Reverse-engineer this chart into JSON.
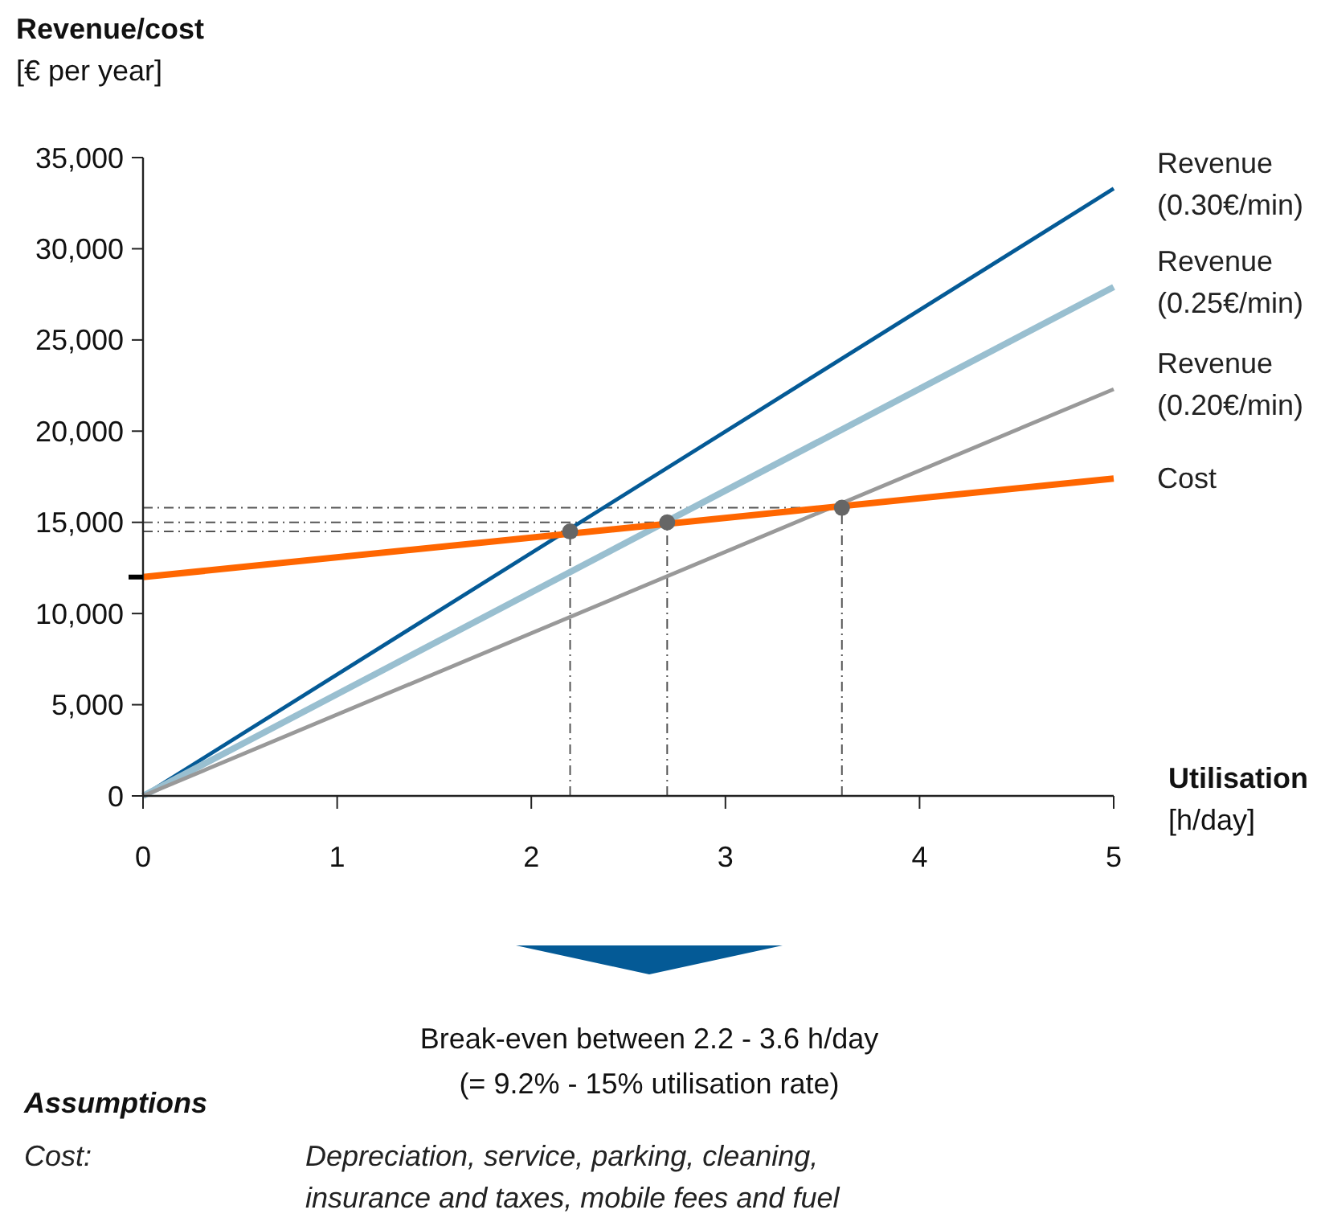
{
  "chart_data": {
    "type": "line",
    "ylabel": "Revenue/cost [€ per year]",
    "xlabel": "Utilisation [h/day]",
    "xlim": [
      0,
      5
    ],
    "xticks": [
      0,
      1,
      2,
      3,
      4,
      5
    ],
    "ylim": [
      0,
      35000
    ],
    "yticks": [
      {
        "value": 0,
        "label": "0"
      },
      {
        "value": 5000,
        "label": "5,000"
      },
      {
        "value": 10000,
        "label": "10,000"
      },
      {
        "value": 12000,
        "label": null
      },
      {
        "value": 15000,
        "label": "15,000"
      },
      {
        "value": 20000,
        "label": "20,000"
      },
      {
        "value": 25000,
        "label": "25,000"
      },
      {
        "value": 30000,
        "label": "30,000"
      },
      {
        "value": 35000,
        "label": "35,000"
      }
    ],
    "grid": false,
    "series": [
      {
        "name": "Revenue (0.30€/min)",
        "color": "#045a96",
        "x": [
          0,
          5
        ],
        "values": [
          0,
          33300
        ]
      },
      {
        "name": "Revenue (0.25€/min)",
        "color": "#99bfd0",
        "x": [
          0,
          5
        ],
        "values": [
          0,
          27900
        ]
      },
      {
        "name": "Revenue (0.20€/min)",
        "color": "#999999",
        "x": [
          0,
          5
        ],
        "values": [
          0,
          22300
        ]
      },
      {
        "name": "Cost",
        "color": "#ff6600",
        "x": [
          0,
          5
        ],
        "values": [
          12000,
          17400
        ]
      },
      {
        "type": "scatter",
        "color": "#666666",
        "marker": "circle",
        "x": [
          2.2,
          2.7,
          3.6
        ],
        "values": [
          14500,
          15000,
          15800
        ]
      }
    ],
    "ref_lines": [
      {
        "axis": "y",
        "value": 14500,
        "color": "#555555",
        "line_style": "dashed"
      },
      {
        "axis": "y",
        "value": 15000,
        "color": "#555555",
        "line_style": "dashed"
      },
      {
        "axis": "y",
        "value": 15800,
        "color": "#555555",
        "line_style": "dashed"
      },
      {
        "axis": "x",
        "value": 2.2,
        "color": "#555555",
        "line_style": "dashed"
      },
      {
        "axis": "x",
        "value": 2.7,
        "color": "#555555",
        "line_style": "dashed"
      },
      {
        "axis": "x",
        "value": 3.6,
        "color": "#555555",
        "line_style": "dashed"
      }
    ],
    "annotations": [
      "Break-even between 2.2 - 3.6 h/day",
      "(= 9.2% - 15% utilisation rate)",
      "Assumptions",
      "Cost:",
      "Depreciation, service, parking, cleaning, insurance and taxes, mobile fees and fuel"
    ]
  }
}
